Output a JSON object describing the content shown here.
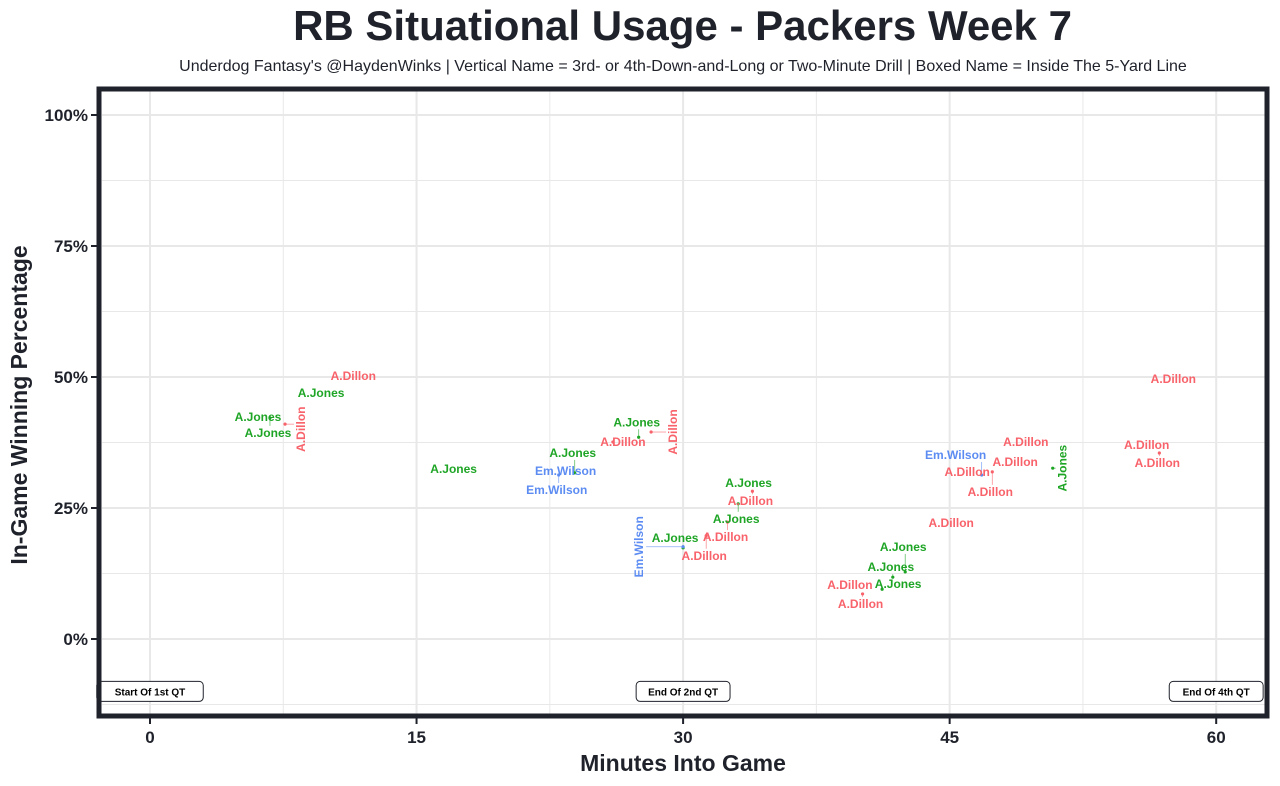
{
  "chart_data": {
    "type": "scatter",
    "title": "RB Situational Usage - Packers Week 7",
    "subtitle": "Underdog Fantasy's @HaydenWinks | Vertical Name = 3rd- or 4th-Down-and-Long or Two-Minute Drill | Boxed Name = Inside The 5-Yard Line",
    "xlabel": "Minutes Into Game",
    "ylabel": "In-Game Winning Percentage",
    "xlim": [
      -2.7,
      63
    ],
    "ylim": [
      -14.7,
      105
    ],
    "xticks": [
      0,
      15,
      30,
      45,
      60
    ],
    "xtick_labels": [
      "0",
      "15",
      "30",
      "45",
      "60"
    ],
    "yticks": [
      0,
      25,
      50,
      75,
      100
    ],
    "ytick_labels": [
      "0%",
      "25%",
      "50%",
      "75%",
      "100%"
    ],
    "grid": true,
    "colors": {
      "A.Dillon": "#f8626a",
      "A.Jones": "#1fa526",
      "Em.Wilson": "#5c8cf2"
    },
    "annotations": [
      {
        "x": 0,
        "y": -10,
        "text": "Start Of 1st QT"
      },
      {
        "x": 30,
        "y": -10,
        "text": "End Of 2nd QT"
      },
      {
        "x": 60,
        "y": -10,
        "text": "End Of 4th QT"
      }
    ],
    "points": [
      {
        "name": "A.Dillon",
        "x": 11.55,
        "y": 50.2,
        "vertical": false
      },
      {
        "name": "A.Jones",
        "x": 9.74,
        "y": 47.9,
        "vertical": false
      },
      {
        "name": "A.Jones",
        "x": 6.19,
        "y": 42.4,
        "vertical": false
      },
      {
        "name": "A.Jones",
        "x": 6.75,
        "y": 42.2,
        "vertical": false
      },
      {
        "name": "A.Dillon",
        "x": 7.6,
        "y": 41.0,
        "vertical": true
      },
      {
        "name": "A.Jones",
        "x": 17.2,
        "y": 32.4,
        "vertical": false
      },
      {
        "name": "Em.Wilson",
        "x": 23.5,
        "y": 32.1,
        "vertical": false
      },
      {
        "name": "Em.Wilson",
        "x": 23.0,
        "y": 31.3,
        "vertical": false
      },
      {
        "name": "A.Jones",
        "x": 23.9,
        "y": 31.7,
        "vertical": false
      },
      {
        "name": "A.Dillon",
        "x": 26.05,
        "y": 37.6,
        "vertical": false
      },
      {
        "name": "A.Jones",
        "x": 27.5,
        "y": 38.5,
        "vertical": false
      },
      {
        "name": "A.Dillon",
        "x": 28.2,
        "y": 39.5,
        "vertical": true
      },
      {
        "name": "A.Jones",
        "x": 33.8,
        "y": 29.8,
        "vertical": false
      },
      {
        "name": "A.Dillon",
        "x": 33.9,
        "y": 28.2,
        "vertical": false
      },
      {
        "name": "A.Jones",
        "x": 33.1,
        "y": 25.8,
        "vertical": false
      },
      {
        "name": "A.Dillon",
        "x": 32.5,
        "y": 22.3,
        "vertical": false
      },
      {
        "name": "A.Dillon",
        "x": 31.3,
        "y": 19.7,
        "vertical": false
      },
      {
        "name": "A.Jones",
        "x": 30.0,
        "y": 17.4,
        "vertical": false
      },
      {
        "name": "Em.Wilson",
        "x": 30.0,
        "y": 17.6,
        "vertical": true
      },
      {
        "name": "A.Dillon",
        "x": 45.2,
        "y": 22.1,
        "vertical": false
      },
      {
        "name": "A.Dillon",
        "x": 49.4,
        "y": 37.6,
        "vertical": false
      },
      {
        "name": "A.Dillon",
        "x": 48.8,
        "y": 34.7,
        "vertical": false
      },
      {
        "name": "A.Dillon",
        "x": 46.1,
        "y": 31.9,
        "vertical": false
      },
      {
        "name": "A.Dillon",
        "x": 47.4,
        "y": 31.9,
        "vertical": false
      },
      {
        "name": "Em.Wilson",
        "x": 46.8,
        "y": 31.3,
        "vertical": false
      },
      {
        "name": "A.Jones",
        "x": 50.8,
        "y": 32.6,
        "vertical": true
      },
      {
        "name": "A.Dillon",
        "x": 56.2,
        "y": 37.0,
        "vertical": false
      },
      {
        "name": "A.Dillon",
        "x": 56.8,
        "y": 35.5,
        "vertical": false
      },
      {
        "name": "A.Dillon",
        "x": 57.7,
        "y": 49.6,
        "vertical": false
      },
      {
        "name": "A.Dillon",
        "x": 39.5,
        "y": 10.3,
        "vertical": false
      },
      {
        "name": "A.Dillon",
        "x": 40.1,
        "y": 8.6,
        "vertical": false
      },
      {
        "name": "A.Jones",
        "x": 41.2,
        "y": 9.5,
        "vertical": false
      },
      {
        "name": "A.Jones",
        "x": 41.8,
        "y": 11.8,
        "vertical": false
      },
      {
        "name": "A.Jones",
        "x": 42.5,
        "y": 12.8,
        "vertical": false
      }
    ]
  }
}
